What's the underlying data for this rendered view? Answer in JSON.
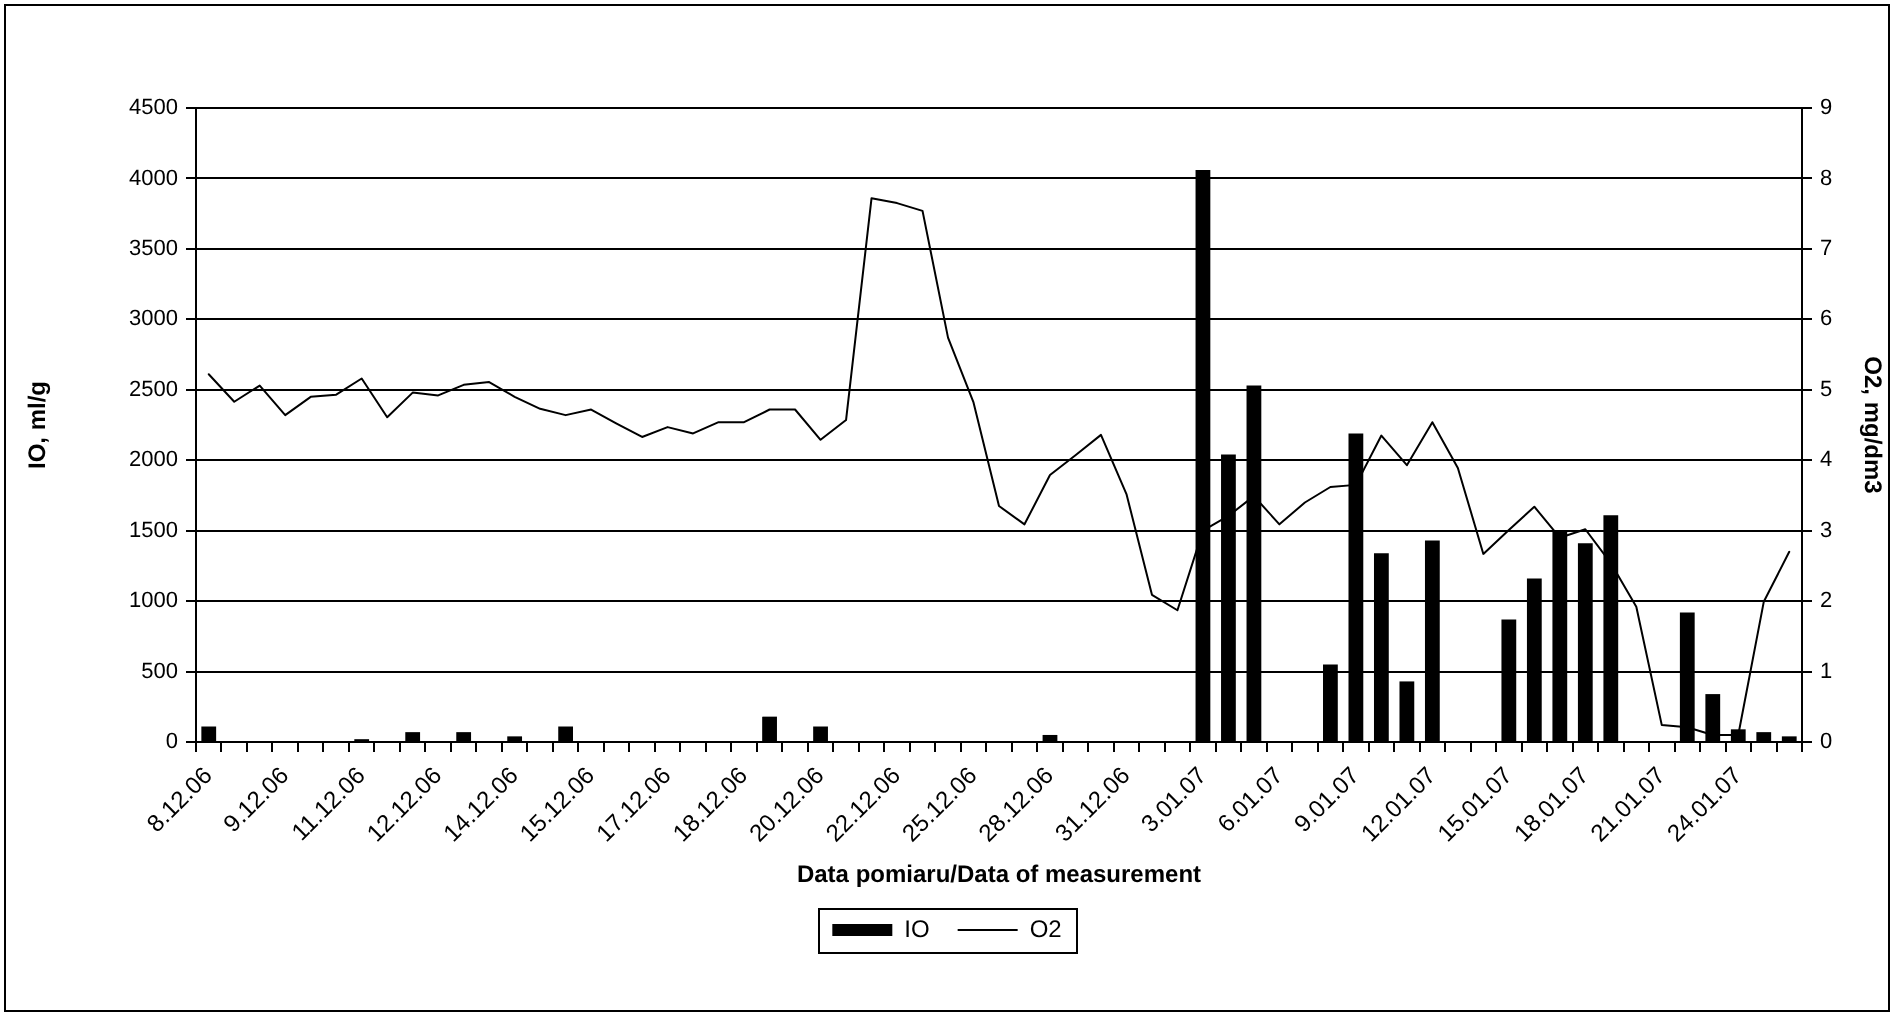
{
  "chart_data": {
    "type": "bar",
    "xlabel": "Data pomiaru/Data of measurement",
    "ylabel": "IO, ml/g",
    "y2label": "O2, mg/dm3",
    "categories": [
      "8.12.06",
      null,
      null,
      "9.12.06",
      null,
      null,
      "11.12.06",
      null,
      null,
      "12.12.06",
      null,
      null,
      "14.12.06",
      null,
      null,
      "15.12.06",
      null,
      null,
      "17.12.06",
      null,
      null,
      "18.12.06",
      null,
      null,
      "20.12.06",
      null,
      null,
      "22.12.06",
      null,
      null,
      "25.12.06",
      null,
      null,
      "28.12.06",
      null,
      null,
      "31.12.06",
      null,
      null,
      "3.01.07",
      null,
      null,
      "6.01.07",
      null,
      null,
      "9.01.07",
      null,
      null,
      "12.01.07",
      null,
      null,
      "15.01.07",
      null,
      null,
      "18.01.07",
      null,
      null,
      "21.01.07",
      null,
      null,
      "24.01.07",
      null,
      null
    ],
    "series": [
      {
        "name": "IO",
        "color": "#000000",
        "values": [
          110,
          null,
          null,
          null,
          null,
          null,
          20,
          null,
          70,
          null,
          70,
          null,
          40,
          null,
          110,
          null,
          null,
          null,
          null,
          null,
          null,
          null,
          180,
          null,
          110,
          null,
          null,
          null,
          null,
          null,
          null,
          null,
          null,
          50,
          null,
          null,
          null,
          null,
          null,
          4060,
          2040,
          2530,
          null,
          null,
          550,
          2190,
          1340,
          430,
          1430,
          null,
          null,
          870,
          1160,
          1490,
          1410,
          1610,
          null,
          null,
          920,
          340,
          90,
          70,
          40
        ]
      },
      {
        "name": "O2",
        "type": "line",
        "axis": "y2",
        "color": "#000000",
        "values": [
          5.22,
          4.83,
          5.06,
          4.64,
          4.9,
          4.93,
          5.16,
          4.61,
          4.96,
          4.92,
          5.07,
          5.11,
          4.9,
          4.73,
          4.64,
          4.72,
          4.52,
          4.33,
          4.47,
          4.38,
          4.54,
          4.54,
          4.72,
          4.72,
          4.29,
          4.57,
          7.72,
          7.65,
          7.54,
          5.74,
          4.82,
          3.35,
          3.09,
          3.79,
          4.07,
          4.36,
          3.52,
          2.09,
          1.87,
          3.0,
          3.21,
          3.49,
          3.09,
          3.4,
          3.62,
          3.65,
          4.35,
          3.93,
          4.54,
          3.89,
          2.67,
          3.01,
          3.34,
          2.9,
          3.02,
          2.54,
          1.92,
          0.24,
          0.21,
          0.1,
          0.1,
          1.99,
          2.7
        ]
      }
    ],
    "ylim": [
      0,
      4500
    ],
    "yticks": [
      0,
      500,
      1000,
      1500,
      2000,
      2500,
      3000,
      3500,
      4000,
      4500
    ],
    "y2lim": [
      0,
      9
    ],
    "y2ticks": [
      0,
      1,
      2,
      3,
      4,
      5,
      6,
      7,
      8,
      9
    ],
    "grid": "y",
    "legend": "bottom",
    "marker": "none",
    "line_style": "solid"
  }
}
